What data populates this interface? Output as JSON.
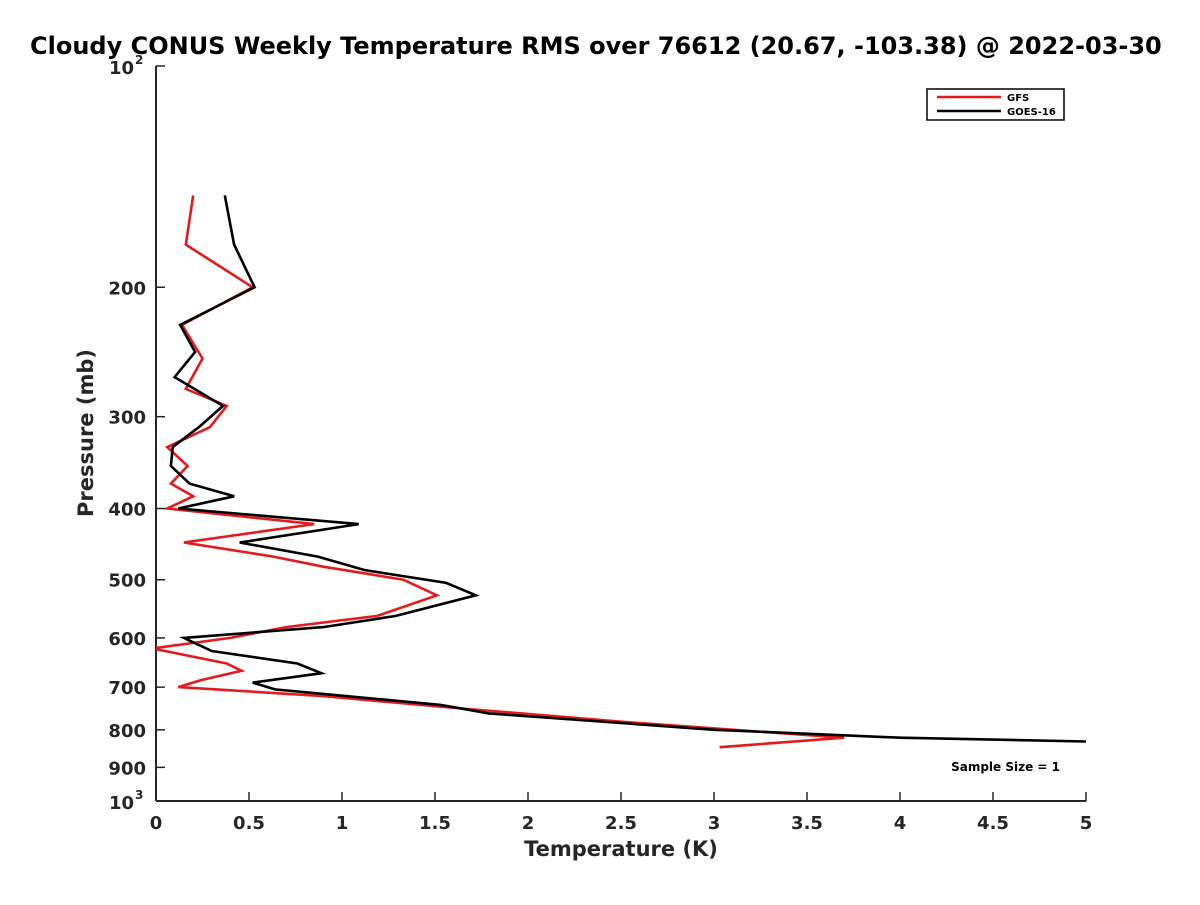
{
  "chart_data": {
    "type": "line",
    "title": "Cloudy CONUS Weekly Temperature RMS over 76612 (20.67, -103.38) @ 2022-03-30",
    "xlabel": "Temperature (K)",
    "ylabel": "Pressure (mb)",
    "xlim": [
      0,
      5
    ],
    "ylim": [
      100,
      1000
    ],
    "y_scale": "log",
    "y_reversed": true,
    "grid": false,
    "legend_position": "top-right",
    "x_ticks": [
      {
        "value": 0,
        "label": "0"
      },
      {
        "value": 0.5,
        "label": "0.5"
      },
      {
        "value": 1,
        "label": "1"
      },
      {
        "value": 1.5,
        "label": "1.5"
      },
      {
        "value": 2,
        "label": "2"
      },
      {
        "value": 2.5,
        "label": "2.5"
      },
      {
        "value": 3,
        "label": "3"
      },
      {
        "value": 3.5,
        "label": "3.5"
      },
      {
        "value": 4,
        "label": "4"
      },
      {
        "value": 4.5,
        "label": "4.5"
      },
      {
        "value": 5,
        "label": "5"
      }
    ],
    "y_ticks": [
      {
        "value": 100,
        "label": "10",
        "sup": "2"
      },
      {
        "value": 200,
        "label": "200"
      },
      {
        "value": 300,
        "label": "300"
      },
      {
        "value": 400,
        "label": "400"
      },
      {
        "value": 500,
        "label": "500"
      },
      {
        "value": 600,
        "label": "600"
      },
      {
        "value": 700,
        "label": "700"
      },
      {
        "value": 800,
        "label": "800"
      },
      {
        "value": 900,
        "label": "900"
      },
      {
        "value": 1000,
        "label": "10",
        "sup": "3"
      }
    ],
    "annotation": "Sample Size = 1",
    "series": [
      {
        "name": "GFS",
        "color": "#e41a1c",
        "points": [
          [
            0.2,
            150
          ],
          [
            0.16,
            175
          ],
          [
            0.52,
            200
          ],
          [
            0.14,
            225
          ],
          [
            0.25,
            250
          ],
          [
            0.16,
            275
          ],
          [
            0.38,
            290
          ],
          [
            0.29,
            310
          ],
          [
            0.06,
            330
          ],
          [
            0.17,
            350
          ],
          [
            0.08,
            370
          ],
          [
            0.2,
            385
          ],
          [
            0.06,
            400
          ],
          [
            0.85,
            420
          ],
          [
            0.15,
            445
          ],
          [
            0.63,
            465
          ],
          [
            0.9,
            480
          ],
          [
            1.33,
            500
          ],
          [
            1.51,
            525
          ],
          [
            1.19,
            560
          ],
          [
            0.7,
            580
          ],
          [
            0.4,
            600
          ],
          [
            -0.02,
            620
          ],
          [
            0.38,
            650
          ],
          [
            0.46,
            665
          ],
          [
            0.24,
            685
          ],
          [
            0.12,
            700
          ],
          [
            0.9,
            720
          ],
          [
            1.55,
            745
          ],
          [
            2.5,
            780
          ],
          [
            3.7,
            820
          ],
          [
            3.03,
            845
          ]
        ]
      },
      {
        "name": "GOES-16",
        "color": "#000000",
        "points": [
          [
            0.37,
            150
          ],
          [
            0.42,
            175
          ],
          [
            0.53,
            200
          ],
          [
            0.13,
            225
          ],
          [
            0.21,
            245
          ],
          [
            0.1,
            265
          ],
          [
            0.36,
            290
          ],
          [
            0.23,
            310
          ],
          [
            0.09,
            330
          ],
          [
            0.08,
            350
          ],
          [
            0.18,
            370
          ],
          [
            0.42,
            385
          ],
          [
            0.12,
            400
          ],
          [
            1.09,
            420
          ],
          [
            0.45,
            445
          ],
          [
            0.87,
            465
          ],
          [
            1.12,
            485
          ],
          [
            1.56,
            505
          ],
          [
            1.72,
            525
          ],
          [
            1.29,
            560
          ],
          [
            0.9,
            580
          ],
          [
            0.15,
            600
          ],
          [
            0.3,
            625
          ],
          [
            0.76,
            650
          ],
          [
            0.89,
            670
          ],
          [
            0.52,
            690
          ],
          [
            0.64,
            705
          ],
          [
            1.53,
            740
          ],
          [
            1.79,
            760
          ],
          [
            3.0,
            800
          ],
          [
            4.0,
            820
          ],
          [
            5.0,
            830
          ]
        ]
      }
    ]
  }
}
